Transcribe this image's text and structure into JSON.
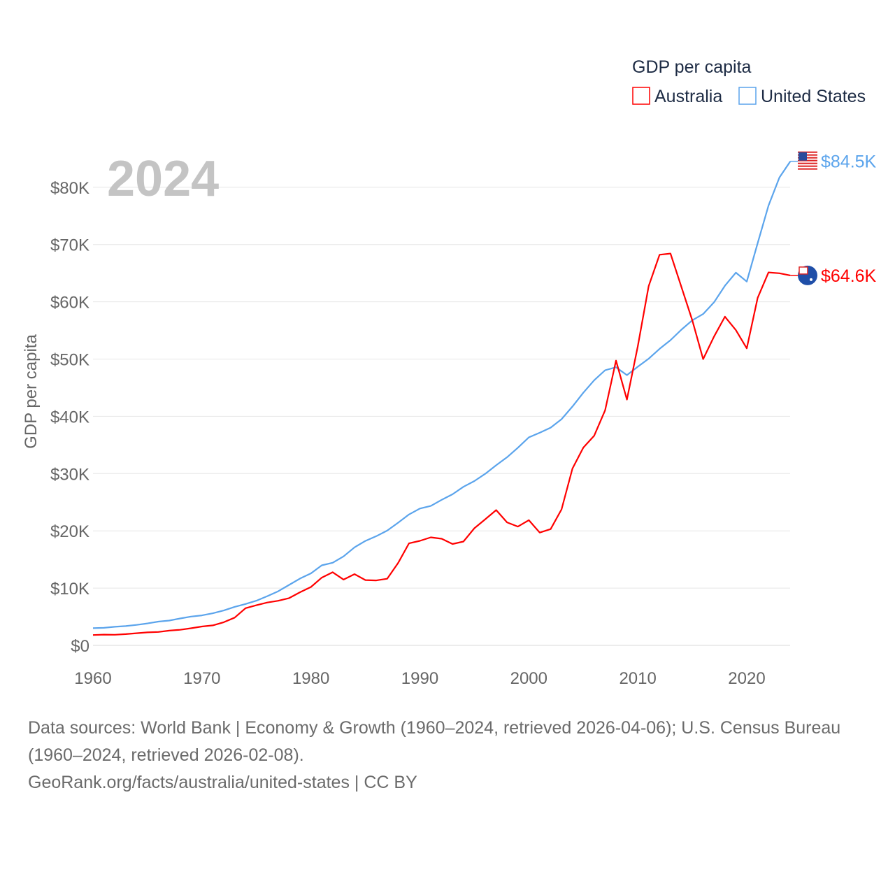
{
  "chart_data": {
    "type": "line",
    "title": "GDP per capita",
    "year_label": "2024",
    "xlabel": "",
    "ylabel": "GDP per capita",
    "xlim": [
      1960,
      2024
    ],
    "ylim": [
      0,
      85000
    ],
    "x_ticks": [
      1960,
      1970,
      1980,
      1990,
      2000,
      2010,
      2020
    ],
    "x_tick_labels": [
      "1960",
      "1970",
      "1980",
      "1990",
      "2000",
      "2010",
      "2020"
    ],
    "y_ticks": [
      0,
      10000,
      20000,
      30000,
      40000,
      50000,
      60000,
      70000,
      80000
    ],
    "y_tick_labels": [
      "$0",
      "$10K",
      "$20K",
      "$30K",
      "$40K",
      "$50K",
      "$60K",
      "$70K",
      "$80K"
    ],
    "grid": true,
    "legend_placement": "top-right",
    "x": [
      1960,
      1961,
      1962,
      1963,
      1964,
      1965,
      1966,
      1967,
      1968,
      1969,
      1970,
      1971,
      1972,
      1973,
      1974,
      1975,
      1976,
      1977,
      1978,
      1979,
      1980,
      1981,
      1982,
      1983,
      1984,
      1985,
      1986,
      1987,
      1988,
      1989,
      1990,
      1991,
      1992,
      1993,
      1994,
      1995,
      1996,
      1997,
      1998,
      1999,
      2000,
      2001,
      2002,
      2003,
      2004,
      2005,
      2006,
      2007,
      2008,
      2009,
      2010,
      2011,
      2012,
      2013,
      2014,
      2015,
      2016,
      2017,
      2018,
      2019,
      2020,
      2021,
      2022,
      2023,
      2024
    ],
    "series": [
      {
        "name": "Australia",
        "color": "#ff0000",
        "end_label": "$64.6K",
        "flag_icon": "australia-flag-icon",
        "values": [
          1807,
          1875,
          1852,
          1964,
          2128,
          2277,
          2340,
          2576,
          2720,
          2986,
          3300,
          3496,
          4042,
          4846,
          6493,
          7003,
          7480,
          7794,
          8259,
          9285,
          10195,
          11836,
          12770,
          11484,
          12444,
          11404,
          11338,
          11640,
          14377,
          17815,
          18249,
          18860,
          18624,
          17700,
          18129,
          20448,
          22029,
          23622,
          21477,
          20744,
          21870,
          19696,
          20301,
          23752,
          30884,
          34532,
          36623,
          41054,
          49737,
          42920,
          52203,
          62733,
          68215,
          68427,
          62604,
          56770,
          49982,
          53937,
          57396,
          55049,
          51868,
          60698,
          65134,
          64983,
          64603
        ]
      },
      {
        "name": "United States",
        "color": "#5ba4ec",
        "end_label": "$84.5K",
        "flag_icon": "us-flag-icon",
        "values": [
          3007,
          3067,
          3244,
          3375,
          3574,
          3828,
          4146,
          4336,
          4696,
          5032,
          5234,
          5609,
          6094,
          6726,
          7226,
          7801,
          8592,
          9453,
          10565,
          11674,
          12575,
          13976,
          14434,
          15544,
          17121,
          18237,
          19071,
          20039,
          21417,
          22857,
          23889,
          24342,
          25419,
          26387,
          27695,
          28691,
          29968,
          31459,
          32854,
          34515,
          36330,
          37134,
          38023,
          39497,
          41712,
          44115,
          46299,
          48050,
          48570,
          47195,
          48651,
          50066,
          51784,
          53291,
          55124,
          56763,
          57867,
          59915,
          62805,
          65095,
          63528,
          70249,
          76799,
          81695,
          84534
        ]
      }
    ]
  },
  "footer": {
    "sources_line1": "Data sources: World Bank | Economy & Growth (1960–2024, retrieved 2026-04-06); U.S. Census Bureau (1960–2024, retrieved 2026-02-08).",
    "attribution": "GeoRank.org/facts/australia/united-states | CC BY"
  }
}
